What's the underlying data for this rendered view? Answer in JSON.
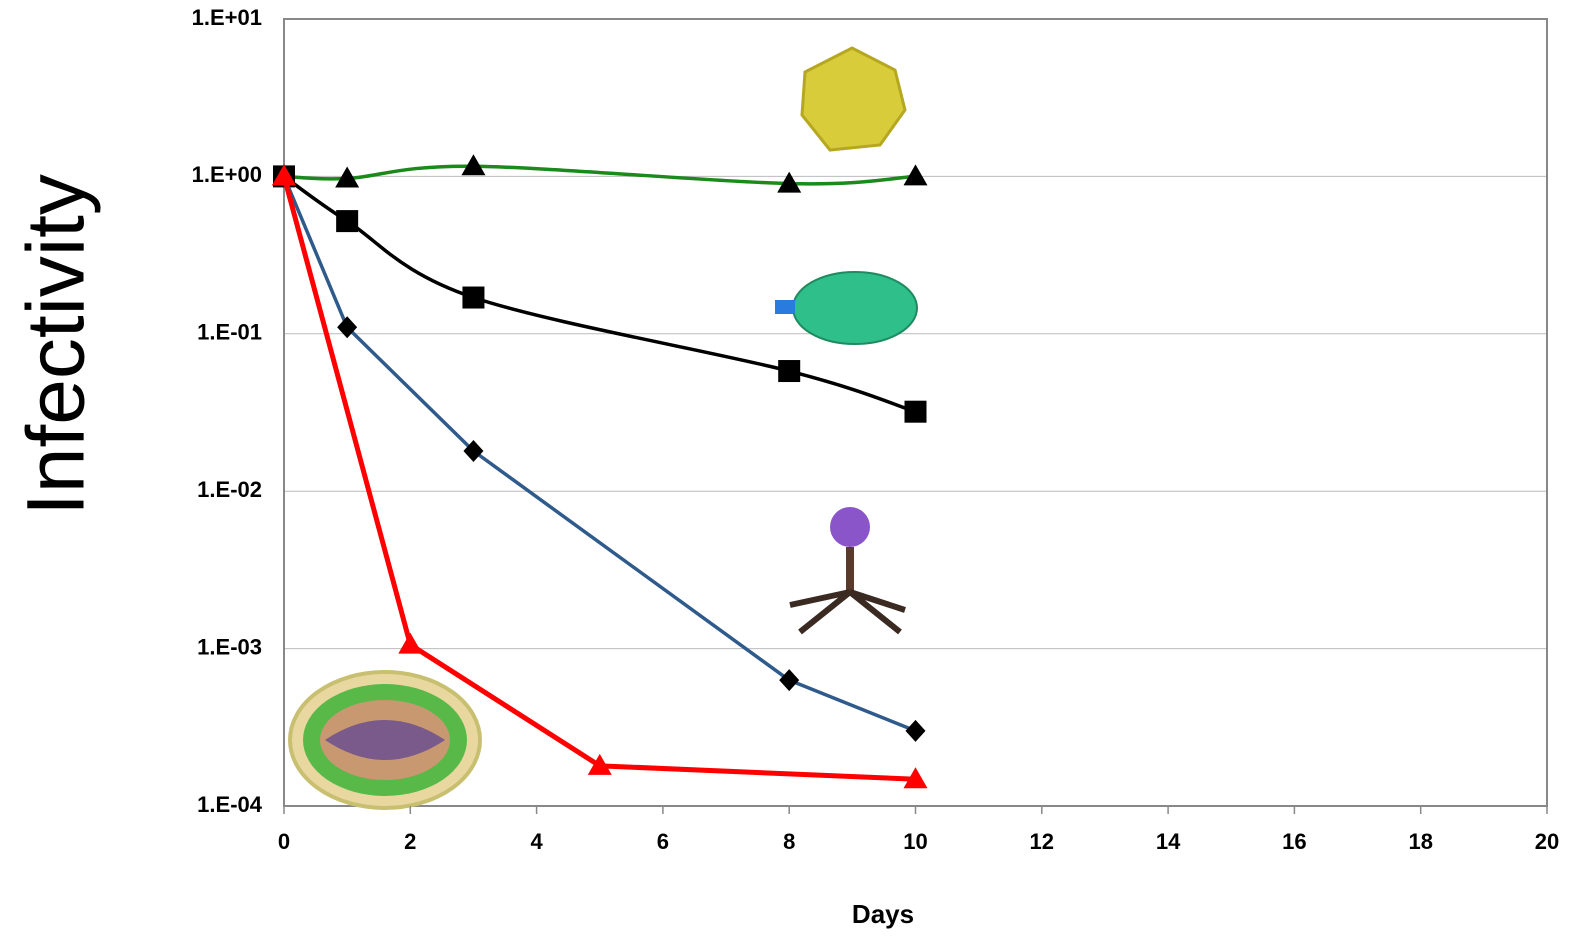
{
  "chart_data": {
    "type": "line",
    "x_label": "Days",
    "y_label": "Infectivity",
    "log_y": true,
    "grid": true,
    "xlim": [
      0,
      20
    ],
    "xticks": [
      0,
      2,
      4,
      6,
      8,
      10,
      12,
      14,
      16,
      18,
      20
    ],
    "ylim": [
      0.0001,
      10
    ],
    "yticks": [
      {
        "value": 0.0001,
        "label": "1.E-04"
      },
      {
        "value": 0.001,
        "label": "1.E-03"
      },
      {
        "value": 0.01,
        "label": "1.E-02"
      },
      {
        "value": 0.1,
        "label": "1.E-01"
      },
      {
        "value": 1,
        "label": "1.E+00"
      },
      {
        "value": 10,
        "label": "1.E+01"
      }
    ],
    "series": [
      {
        "color": "#1a8a1a",
        "marker": "triangle",
        "marker_color": "#000000",
        "smooth": true,
        "x": [
          0,
          1,
          3,
          8,
          10
        ],
        "values": [
          1.0,
          0.97,
          1.16,
          0.9,
          1.0
        ]
      },
      {
        "color": "#000000",
        "marker": "square",
        "marker_color": "#000000",
        "smooth": true,
        "x": [
          0,
          1,
          3,
          8,
          10
        ],
        "values": [
          1.0,
          0.52,
          0.17,
          0.058,
          0.032
        ]
      },
      {
        "color": "#2f5a8c",
        "marker": "diamond",
        "marker_color": "#000000",
        "smooth": false,
        "x": [
          0,
          1,
          3,
          8,
          10
        ],
        "values": [
          1.0,
          0.11,
          0.018,
          0.00063,
          0.0003
        ]
      },
      {
        "color": "#ff0000",
        "marker": "triangle",
        "marker_color": "#ff0000",
        "smooth": false,
        "x": [
          0,
          2,
          5,
          10
        ],
        "values": [
          1.0,
          0.00106,
          0.00018,
          0.000148
        ]
      }
    ]
  }
}
